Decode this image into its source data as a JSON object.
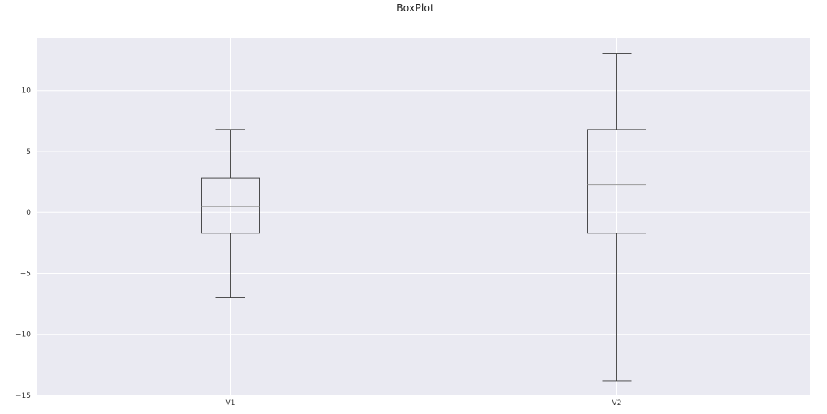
{
  "chart_data": {
    "type": "box",
    "title": "BoxPlot",
    "categories": [
      "V1",
      "V2"
    ],
    "boxes": [
      {
        "label": "V1",
        "whisker_low": -7.0,
        "q1": -1.7,
        "median": 0.5,
        "q3": 2.8,
        "whisker_high": 6.8
      },
      {
        "label": "V2",
        "whisker_low": -13.8,
        "q1": -1.7,
        "median": 2.3,
        "q3": 6.8,
        "whisker_high": 13.0
      }
    ],
    "y_ticks": [
      -15,
      -10,
      -5,
      0,
      5,
      10
    ],
    "ylim": [
      -15,
      14.3
    ],
    "xlabel": "",
    "ylabel": "",
    "grid": true,
    "legend": "none",
    "colors": {
      "background": "#eaeaf2",
      "grid": "#ffffff",
      "box": "#3a3a3a",
      "median": "#9a9a9a"
    }
  }
}
